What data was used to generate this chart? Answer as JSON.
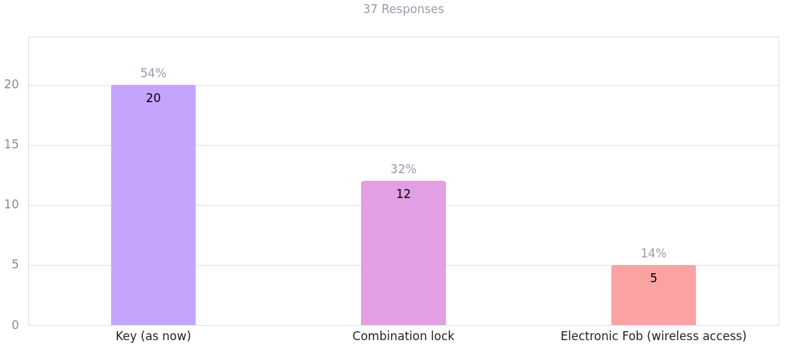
{
  "chart_data": {
    "type": "bar",
    "title": "37 Responses",
    "categories": [
      "Key (as now)",
      "Combination lock",
      "Electronic Fob (wireless access)"
    ],
    "values": [
      20,
      12,
      5
    ],
    "colors": [
      "#c4a5fe",
      "#e29fe4",
      "#fba3a3"
    ],
    "ylim": [
      0,
      24
    ],
    "yticks": [
      0,
      5,
      10,
      15,
      20
    ],
    "grid": "y",
    "data_labels": true,
    "annotations": [
      {
        "text": "54%",
        "x": "Key (as now)",
        "y": 20
      },
      {
        "text": "32%",
        "x": "Combination lock",
        "y": 12
      },
      {
        "text": "14%",
        "x": "Electronic Fob (wireless access)",
        "y": 5
      }
    ]
  }
}
